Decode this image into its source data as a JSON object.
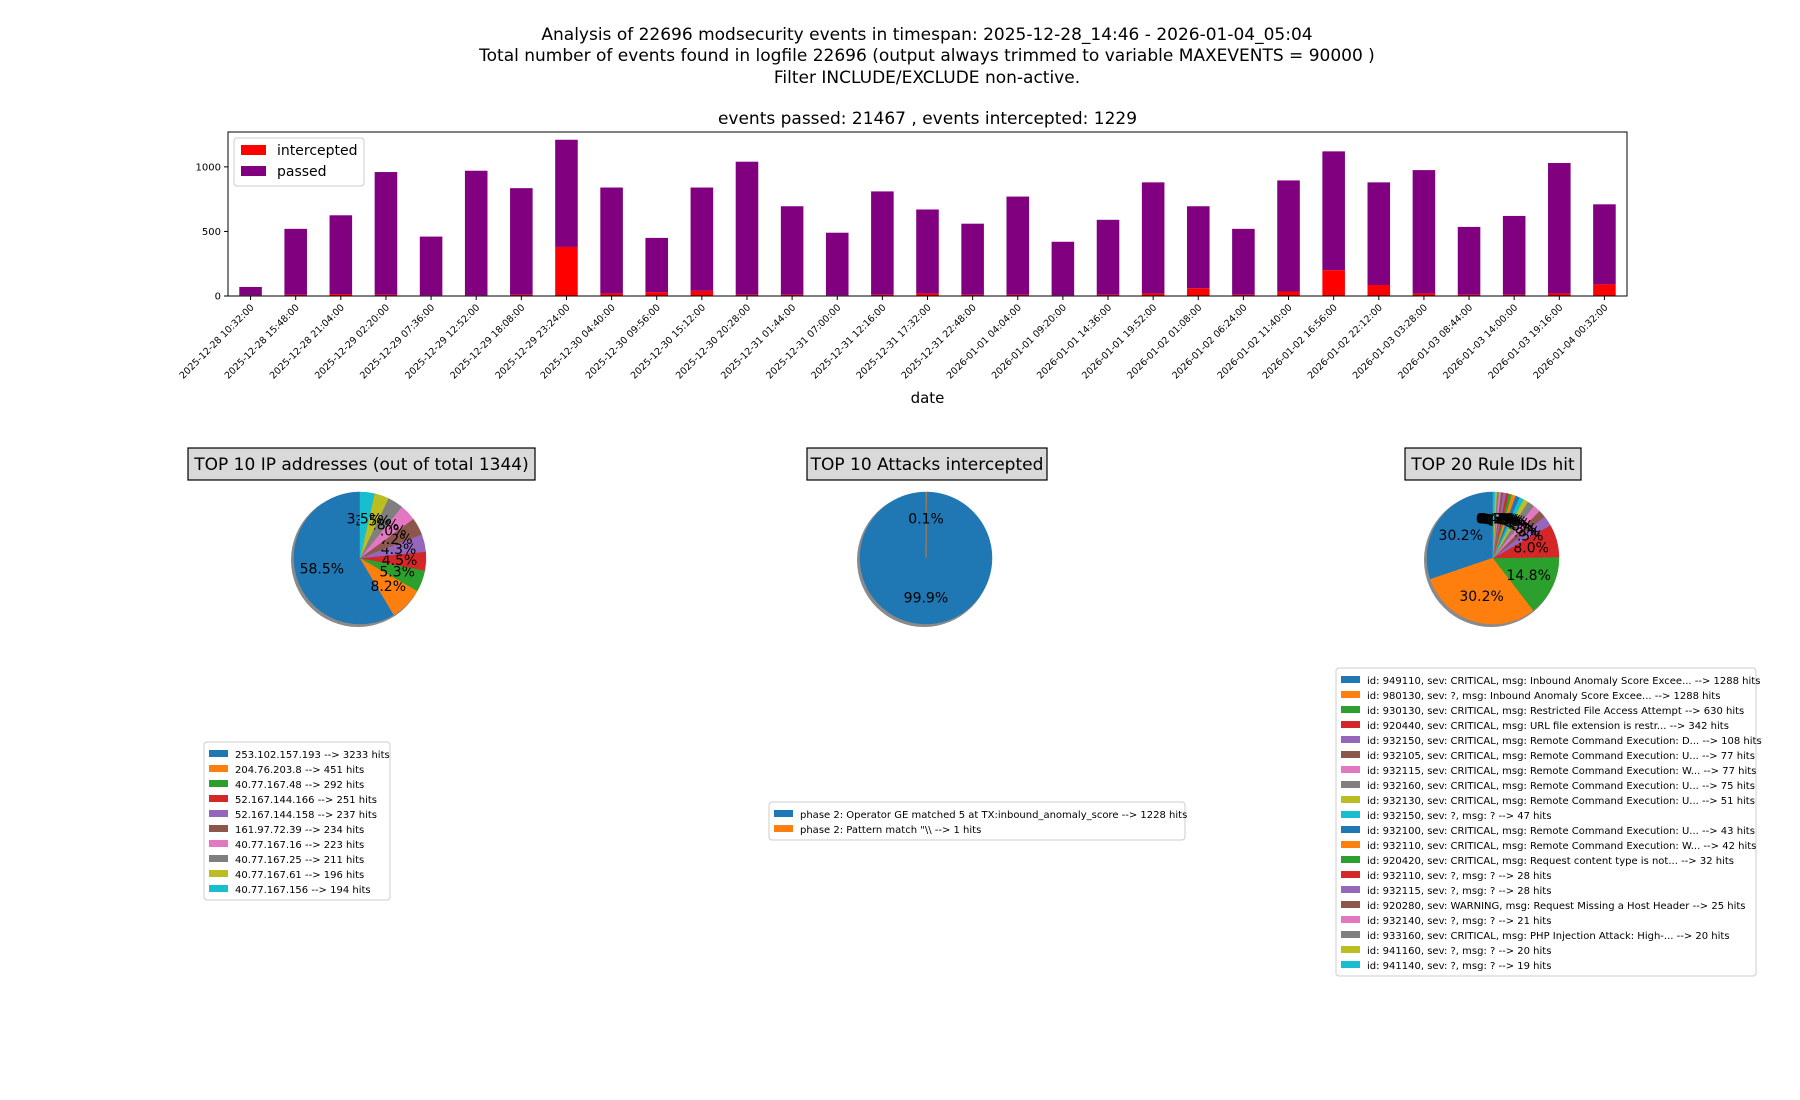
{
  "header": {
    "line1": "Analysis of 22696 modsecurity events in timespan: 2025-12-28_14:46 - 2026-01-04_05:04",
    "line2": "Total number of events found in logfile 22696 (output always trimmed to variable MAXEVENTS = 90000 )",
    "line3": "Filter INCLUDE/EXCLUDE non-active."
  },
  "colors": {
    "intercepted": "#ff0000",
    "passed": "#800080",
    "palette": [
      "#1f77b4",
      "#ff7f0e",
      "#2ca02c",
      "#d62728",
      "#9467bd",
      "#8c564b",
      "#e377c2",
      "#7f7f7f",
      "#bcbd22",
      "#17becf"
    ]
  },
  "chart_data": [
    {
      "type": "bar",
      "stacked": true,
      "title": "events passed: 21467 , events intercepted: 1229",
      "xlabel": "date",
      "ylabel": "",
      "ylim": [
        0,
        1270
      ],
      "yticks": [
        0,
        500,
        1000
      ],
      "legend": "top-left",
      "categories": [
        "2025-12-28 10:32:00",
        "2025-12-28 15:48:00",
        "2025-12-28 21:04:00",
        "2025-12-29 02:20:00",
        "2025-12-29 07:36:00",
        "2025-12-29 12:52:00",
        "2025-12-29 18:08:00",
        "2025-12-29 23:24:00",
        "2025-12-30 04:40:00",
        "2025-12-30 09:56:00",
        "2025-12-30 15:12:00",
        "2025-12-30 20:28:00",
        "2025-12-31 01:44:00",
        "2025-12-31 07:00:00",
        "2025-12-31 12:16:00",
        "2025-12-31 17:32:00",
        "2025-12-31 22:48:00",
        "2026-01-01 04:04:00",
        "2026-01-01 09:20:00",
        "2026-01-01 14:36:00",
        "2026-01-01 19:52:00",
        "2026-01-02 01:08:00",
        "2026-01-02 06:24:00",
        "2026-01-02 11:40:00",
        "2026-01-02 16:56:00",
        "2026-01-02 22:12:00",
        "2026-01-03 03:28:00",
        "2026-01-03 08:44:00",
        "2026-01-03 14:00:00",
        "2026-01-03 19:16:00",
        "2026-01-04 00:32:00"
      ],
      "series": [
        {
          "name": "intercepted",
          "values": [
            5,
            10,
            15,
            10,
            5,
            5,
            10,
            380,
            20,
            30,
            40,
            10,
            10,
            5,
            10,
            20,
            10,
            10,
            5,
            10,
            20,
            60,
            10,
            35,
            200,
            85,
            20,
            10,
            10,
            20,
            90
          ]
        },
        {
          "name": "passed",
          "values": [
            65,
            510,
            610,
            950,
            455,
            965,
            825,
            830,
            820,
            420,
            800,
            1030,
            685,
            485,
            800,
            650,
            550,
            760,
            415,
            580,
            860,
            635,
            510,
            860,
            920,
            795,
            955,
            525,
            610,
            1010,
            620
          ]
        }
      ]
    },
    {
      "type": "pie",
      "title": "TOP 10 IP addresses (out of total 1344)",
      "labels": [
        "253.102.157.193 --> 3233 hits",
        "204.76.203.8 --> 451 hits",
        "40.77.167.48 --> 292 hits",
        "52.167.144.166 --> 251 hits",
        "52.167.144.158 --> 237 hits",
        "161.97.72.39 --> 234 hits",
        "40.77.167.16 --> 223 hits",
        "40.77.167.25 --> 211 hits",
        "40.77.167.61 --> 196 hits",
        "40.77.167.156 --> 194 hits"
      ],
      "values": [
        3233,
        451,
        292,
        251,
        237,
        234,
        223,
        211,
        196,
        194
      ],
      "pct_labels": [
        "58.5%",
        "8.2%",
        "5.3%",
        "4.5%",
        "4.3%",
        "4.2%",
        "4.0%",
        "3.8%",
        "3.5%",
        "3.5%"
      ]
    },
    {
      "type": "pie",
      "title": "TOP 10 Attacks intercepted",
      "labels": [
        "phase 2: Operator GE matched 5 at TX:inbound_anomaly_score --> 1228 hits",
        "phase 2: Pattern match \"\\\\ --> 1 hits"
      ],
      "values": [
        1228,
        1
      ],
      "pct_labels": [
        "99.9%",
        "0.1%"
      ]
    },
    {
      "type": "pie",
      "title": "TOP 20 Rule IDs hit",
      "labels": [
        "id: 949110, sev: CRITICAL, msg: Inbound Anomaly Score Excee... --> 1288 hits",
        "id: 980130, sev: ?, msg: Inbound Anomaly Score Excee... --> 1288 hits",
        "id: 930130, sev: CRITICAL, msg: Restricted File Access Attempt --> 630 hits",
        "id: 920440, sev: CRITICAL, msg: URL file extension is restr... --> 342 hits",
        "id: 932150, sev: CRITICAL, msg: Remote Command Execution: D... --> 108 hits",
        "id: 932105, sev: CRITICAL, msg: Remote Command Execution: U... --> 77 hits",
        "id: 932115, sev: CRITICAL, msg: Remote Command Execution: W... --> 77 hits",
        "id: 932160, sev: CRITICAL, msg: Remote Command Execution: U... --> 75 hits",
        "id: 932130, sev: CRITICAL, msg: Remote Command Execution: U... --> 51 hits",
        "id: 932150, sev: ?, msg: ? --> 47 hits",
        "id: 932100, sev: CRITICAL, msg: Remote Command Execution: U... --> 43 hits",
        "id: 932110, sev: CRITICAL, msg: Remote Command Execution: W... --> 42 hits",
        "id: 920420, sev: CRITICAL, msg: Request content type is not... --> 32 hits",
        "id: 932110, sev: ?, msg: ? --> 28 hits",
        "id: 932115, sev: ?, msg: ? --> 28 hits",
        "id: 920280, sev: WARNING, msg: Request Missing a Host Header --> 25 hits",
        "id: 932140, sev: ?, msg: ? --> 21 hits",
        "id: 933160, sev: CRITICAL, msg: PHP Injection Attack: High-... --> 20 hits",
        "id: 941160, sev: ?, msg: ? --> 20 hits",
        "id: 941140, sev: ?, msg: ? --> 19 hits"
      ],
      "values": [
        1288,
        1288,
        630,
        342,
        108,
        77,
        77,
        75,
        51,
        47,
        43,
        42,
        32,
        28,
        28,
        25,
        21,
        20,
        20,
        19
      ],
      "pct_labels": [
        "30.2%",
        "30.2%",
        "14.8%",
        "8.0%",
        "2.5%",
        "1.8%",
        "1.8%",
        "1.8%",
        "1.2%",
        "1.1%",
        "1.0%",
        "1.0%",
        "0.8%",
        "0.7%",
        "0.7%",
        "0.6%",
        "0.5%",
        "0.5%",
        "0.5%",
        "0.4%"
      ]
    }
  ]
}
